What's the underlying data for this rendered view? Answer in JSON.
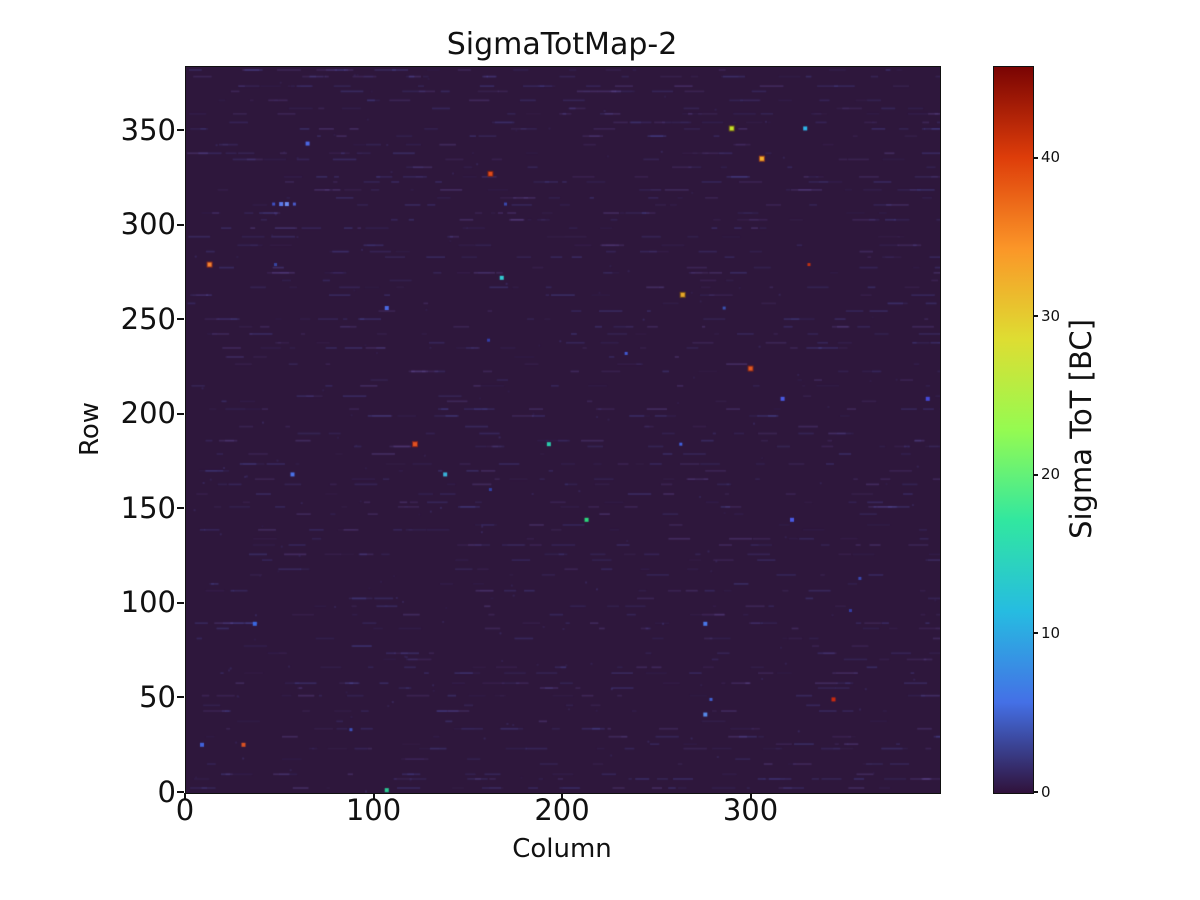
{
  "chart_data": {
    "type": "heatmap",
    "title": "SigmaTotMap-2",
    "xlabel": "Column",
    "ylabel": "Row",
    "xlim": [
      0,
      400
    ],
    "ylim": [
      0,
      384
    ],
    "xticks": [
      0,
      100,
      200,
      300
    ],
    "yticks": [
      0,
      50,
      100,
      150,
      200,
      250,
      300,
      350
    ],
    "grid": false,
    "legend": "none",
    "base_color": "#2e173c",
    "noise_seed": 42,
    "colorbar": {
      "label": "Sigma ToT [BC]",
      "ticks": [
        0,
        10,
        20,
        30,
        40
      ],
      "vmin": 0,
      "vmax": 45.8,
      "colormap": "turbo",
      "gradient_stops": [
        {
          "t": 0.0,
          "color": "#30123b"
        },
        {
          "t": 0.125,
          "color": "#4470e6"
        },
        {
          "t": 0.25,
          "color": "#26bce1"
        },
        {
          "t": 0.375,
          "color": "#31e7a0"
        },
        {
          "t": 0.5,
          "color": "#95fb51"
        },
        {
          "t": 0.625,
          "color": "#dedd32"
        },
        {
          "t": 0.75,
          "color": "#fb9628"
        },
        {
          "t": 0.875,
          "color": "#de3d0a"
        },
        {
          "t": 1.0,
          "color": "#7a0403"
        }
      ]
    },
    "outlier_points": [
      {
        "col": 289,
        "row": 351,
        "color": "#c6e32a",
        "halo": "#7a6a10",
        "size": 4
      },
      {
        "col": 328,
        "row": 351,
        "color": "#2fb4e8",
        "size": 4
      },
      {
        "col": 305,
        "row": 335,
        "color": "#f5b02e",
        "halo": "#c25512",
        "size": 4
      },
      {
        "col": 64,
        "row": 343,
        "color": "#4a67e3",
        "size": 4
      },
      {
        "col": 161,
        "row": 327,
        "color": "#e24c1a",
        "halo": "#8a2408",
        "size": 4
      },
      {
        "col": 46,
        "row": 311,
        "color": "#3f51c4",
        "size": 3
      },
      {
        "col": 50,
        "row": 311,
        "color": "#5a79ea",
        "size": 4
      },
      {
        "col": 53,
        "row": 311,
        "color": "#6c8cf2",
        "size": 4
      },
      {
        "col": 57,
        "row": 311,
        "color": "#4a5ccb",
        "size": 3
      },
      {
        "col": 169,
        "row": 311,
        "color": "#3a49ad",
        "size": 3
      },
      {
        "col": 12,
        "row": 279,
        "color": "#f58432",
        "halo": "#a63412",
        "size": 4
      },
      {
        "col": 47,
        "row": 279,
        "color": "#3746a2",
        "size": 3
      },
      {
        "col": 330,
        "row": 279,
        "color": "#c23212",
        "size": 3
      },
      {
        "col": 167,
        "row": 272,
        "color": "#32cbd2",
        "size": 4
      },
      {
        "col": 263,
        "row": 263,
        "color": "#e8a828",
        "halo": "#835a0f",
        "size": 4
      },
      {
        "col": 106,
        "row": 256,
        "color": "#4a69e2",
        "size": 4
      },
      {
        "col": 285,
        "row": 256,
        "color": "#3a52b2",
        "size": 3
      },
      {
        "col": 160,
        "row": 239,
        "color": "#333da5",
        "size": 3
      },
      {
        "col": 233,
        "row": 232,
        "color": "#415ad2",
        "size": 3
      },
      {
        "col": 299,
        "row": 224,
        "color": "#e25a22",
        "halo": "#952b10",
        "size": 4
      },
      {
        "col": 316,
        "row": 208,
        "color": "#4a5ae2",
        "size": 4
      },
      {
        "col": 393,
        "row": 208,
        "color": "#454ad9",
        "size": 4
      },
      {
        "col": 121,
        "row": 184,
        "color": "#e25222",
        "halo": "#a52a11",
        "size": 4
      },
      {
        "col": 192,
        "row": 184,
        "color": "#2ac9aa",
        "size": 4
      },
      {
        "col": 262,
        "row": 184,
        "color": "#4162e1",
        "size": 3
      },
      {
        "col": 56,
        "row": 168,
        "color": "#4a72e9",
        "size": 4
      },
      {
        "col": 137,
        "row": 168,
        "color": "#39b2d9",
        "size": 4
      },
      {
        "col": 161,
        "row": 160,
        "color": "#3241a2",
        "size": 3
      },
      {
        "col": 212,
        "row": 144,
        "color": "#2cd87c",
        "size": 4
      },
      {
        "col": 321,
        "row": 144,
        "color": "#4a5ae2",
        "size": 4
      },
      {
        "col": 357,
        "row": 113,
        "color": "#3a49b2",
        "size": 3
      },
      {
        "col": 352,
        "row": 96,
        "color": "#353da0",
        "size": 3
      },
      {
        "col": 36,
        "row": 89,
        "color": "#3a69e2",
        "size": 4
      },
      {
        "col": 275,
        "row": 89,
        "color": "#4a79ea",
        "size": 4
      },
      {
        "col": 278,
        "row": 49,
        "color": "#4162d2",
        "size": 3
      },
      {
        "col": 343,
        "row": 49,
        "color": "#ca2a0f",
        "size": 4
      },
      {
        "col": 275,
        "row": 41,
        "color": "#578ae9",
        "size": 4
      },
      {
        "col": 87,
        "row": 33,
        "color": "#3d52bb",
        "size": 3
      },
      {
        "col": 8,
        "row": 25,
        "color": "#4162da",
        "size": 4
      },
      {
        "col": 30,
        "row": 25,
        "color": "#da5222",
        "size": 4
      },
      {
        "col": 106,
        "row": 1,
        "color": "#2ac992",
        "size": 4
      }
    ]
  }
}
